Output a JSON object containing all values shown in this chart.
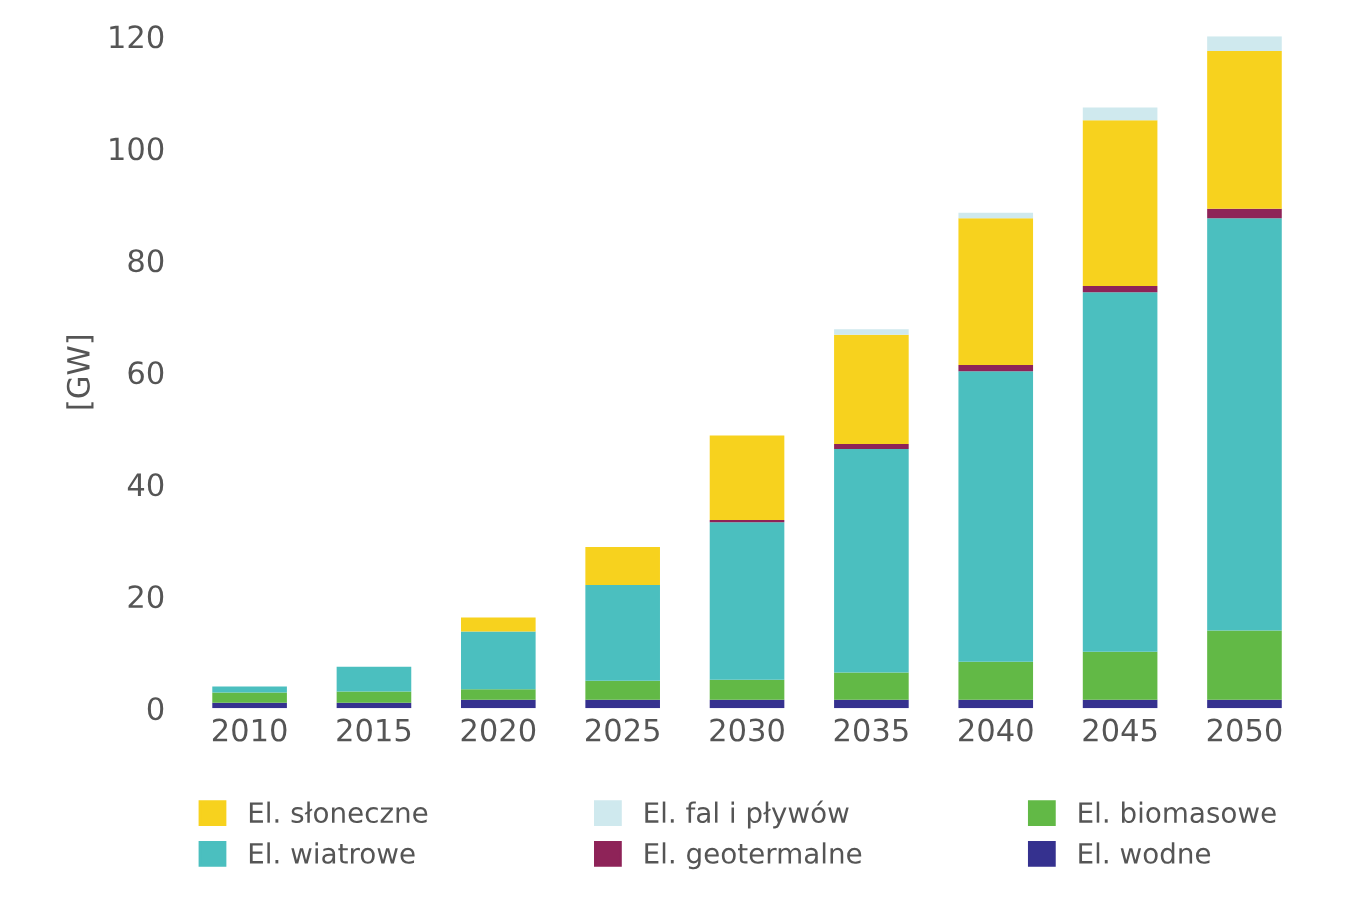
{
  "chart_data": {
    "type": "bar",
    "stacked": true,
    "ylabel": "[GW]",
    "categories": [
      "2010",
      "2015",
      "2020",
      "2025",
      "2030",
      "2035",
      "2040",
      "2045",
      "2050"
    ],
    "series": [
      {
        "name": "El. wodne",
        "color": "#35318f",
        "values": [
          1,
          1,
          1.5,
          1.5,
          1.5,
          1.5,
          1.5,
          1.5,
          1.5
        ]
      },
      {
        "name": "El. biomasowe",
        "color": "#62b946",
        "values": [
          1.8,
          2,
          1.9,
          3.4,
          3.6,
          4.9,
          6.8,
          8.6,
          12.4
        ]
      },
      {
        "name": "El. wiatrowe",
        "color": "#4bbfbf",
        "values": [
          1.1,
          4.4,
          10.3,
          17.1,
          28.1,
          39.9,
          51.9,
          64.2,
          73.6
        ]
      },
      {
        "name": "El. geotermalne",
        "color": "#8e2358",
        "values": [
          0,
          0,
          0,
          0,
          0.4,
          0.9,
          1.1,
          1.1,
          1.7
        ]
      },
      {
        "name": "El. słoneczne",
        "color": "#f7d21e",
        "values": [
          0,
          0,
          2.5,
          6.8,
          15.1,
          19.5,
          26.2,
          29.6,
          28.2
        ]
      },
      {
        "name": "El. fal i pływów",
        "color": "#cfe9ee",
        "values": [
          0,
          0,
          0,
          0,
          0,
          1.0,
          1.0,
          2.3,
          2.6
        ]
      }
    ],
    "ylim": [
      0,
      120
    ],
    "yticks": [
      0,
      20,
      40,
      60,
      80,
      100,
      120
    ],
    "grid": false,
    "legend": "bottom"
  }
}
